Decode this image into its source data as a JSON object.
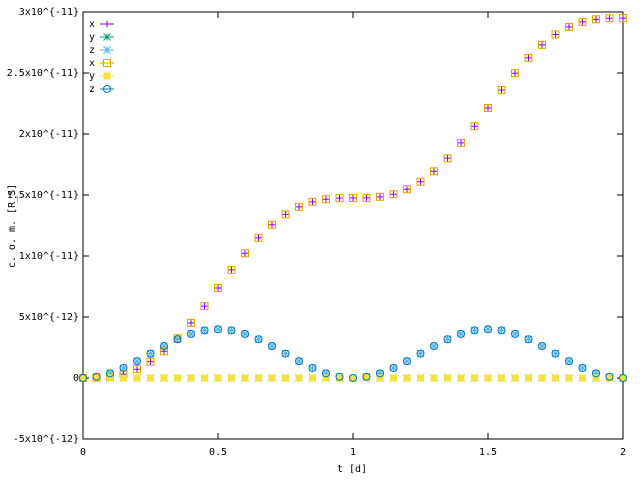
{
  "chart_data": {
    "type": "scatter",
    "xlabel": "t [d]",
    "ylabel": "c. o. m. [R_S]",
    "x": [
      0,
      0.05,
      0.1,
      0.15,
      0.2,
      0.25,
      0.3,
      0.35,
      0.4,
      0.45,
      0.5,
      0.55,
      0.6,
      0.65,
      0.7,
      0.75,
      0.8,
      0.85,
      0.9,
      0.95,
      1,
      1.05,
      1.1,
      1.15,
      1.2,
      1.25,
      1.3,
      1.35,
      1.4,
      1.45,
      1.5,
      1.55,
      1.6,
      1.65,
      1.7,
      1.75,
      1.8,
      1.85,
      1.9,
      1.95,
      2
    ],
    "xlim": [
      0,
      2
    ],
    "xticks": [
      0,
      0.5,
      1,
      1.5,
      2
    ],
    "ylim": [
      -5e-12,
      3e-11
    ],
    "yticks": [
      {
        "value": -5e-12,
        "label": "-5x10^{-12}"
      },
      0,
      {
        "value": 5e-12,
        "label": "5x10^{-12}"
      },
      {
        "value": 1e-11,
        "label": "1x10^{-11}"
      },
      {
        "value": 1.5e-11,
        "label": "1.5x10^{-11}"
      },
      {
        "value": 2e-11,
        "label": "2x10^{-11}"
      },
      {
        "value": 2.5e-11,
        "label": "2.5x10^{-11}"
      },
      {
        "value": 3e-11,
        "label": "3x10^{-11}"
      }
    ],
    "legend": "top-left",
    "series": [
      {
        "name": "x",
        "color": "#9400d3",
        "marker": "plus",
        "values": [
          0,
          1.2e-14,
          9.6e-14,
          3.13e-13,
          7.17e-13,
          1.339e-12,
          2.19e-12,
          3.26e-12,
          4.52e-12,
          5.89e-12,
          7.38e-12,
          8.86e-12,
          1.023e-11,
          1.149e-11,
          1.256e-11,
          1.341e-11,
          1.403e-11,
          1.444e-11,
          1.465e-11,
          1.474e-11,
          1.475e-11,
          1.476e-11,
          1.485e-11,
          1.506e-11,
          1.547e-11,
          1.609e-11,
          1.694e-11,
          1.801e-11,
          1.927e-11,
          2.064e-11,
          2.213e-11,
          2.361e-11,
          2.498e-11,
          2.624e-11,
          2.731e-11,
          2.816e-11,
          2.878e-11,
          2.919e-11,
          2.94e-11,
          2.949e-11,
          2.95e-11
        ]
      },
      {
        "name": "y",
        "color": "#009e73",
        "marker": "star",
        "values": [
          0,
          0,
          0,
          0,
          0,
          0,
          0,
          0,
          0,
          0,
          0,
          0,
          0,
          0,
          0,
          0,
          0,
          0,
          0,
          0,
          0,
          0,
          0,
          0,
          0,
          0,
          0,
          0,
          0,
          0,
          0,
          0,
          0,
          0,
          0,
          0,
          0,
          0,
          0,
          0,
          0
        ]
      },
      {
        "name": "z",
        "color": "#56b4e9",
        "marker": "star",
        "values": [
          0,
          9.8e-14,
          3.82e-13,
          8.24e-13,
          1.382e-12,
          2e-12,
          2.618e-12,
          3.176e-12,
          3.618e-12,
          3.902e-12,
          4e-12,
          3.902e-12,
          3.618e-12,
          3.176e-12,
          2.618e-12,
          2e-12,
          1.382e-12,
          8.24e-13,
          3.82e-13,
          9.8e-14,
          0,
          9.8e-14,
          3.82e-13,
          8.24e-13,
          1.382e-12,
          2e-12,
          2.618e-12,
          3.176e-12,
          3.618e-12,
          3.902e-12,
          4e-12,
          3.902e-12,
          3.618e-12,
          3.176e-12,
          2.618e-12,
          2e-12,
          1.382e-12,
          8.24e-13,
          3.82e-13,
          9.8e-14,
          0
        ]
      },
      {
        "name": "x",
        "color": "#e69f00",
        "marker": "square-open",
        "values": [
          0,
          1.2e-14,
          9.6e-14,
          3.13e-13,
          7.17e-13,
          1.339e-12,
          2.19e-12,
          3.26e-12,
          4.52e-12,
          5.89e-12,
          7.38e-12,
          8.86e-12,
          1.023e-11,
          1.149e-11,
          1.256e-11,
          1.341e-11,
          1.403e-11,
          1.444e-11,
          1.465e-11,
          1.474e-11,
          1.475e-11,
          1.476e-11,
          1.485e-11,
          1.506e-11,
          1.547e-11,
          1.609e-11,
          1.694e-11,
          1.801e-11,
          1.927e-11,
          2.064e-11,
          2.213e-11,
          2.361e-11,
          2.498e-11,
          2.624e-11,
          2.731e-11,
          2.816e-11,
          2.878e-11,
          2.919e-11,
          2.94e-11,
          2.949e-11,
          2.95e-11
        ]
      },
      {
        "name": "y",
        "color": "#f0e442",
        "marker": "square-filled",
        "values": [
          0,
          0,
          0,
          0,
          0,
          0,
          0,
          0,
          0,
          0,
          0,
          0,
          0,
          0,
          0,
          0,
          0,
          0,
          0,
          0,
          0,
          0,
          0,
          0,
          0,
          0,
          0,
          0,
          0,
          0,
          0,
          0,
          0,
          0,
          0,
          0,
          0,
          0,
          0,
          0,
          0
        ]
      },
      {
        "name": "z",
        "color": "#0072b2",
        "marker": "circle-open",
        "values": [
          0,
          9.8e-14,
          3.82e-13,
          8.24e-13,
          1.382e-12,
          2e-12,
          2.618e-12,
          3.176e-12,
          3.618e-12,
          3.902e-12,
          4e-12,
          3.902e-12,
          3.618e-12,
          3.176e-12,
          2.618e-12,
          2e-12,
          1.382e-12,
          8.24e-13,
          3.82e-13,
          9.8e-14,
          0,
          9.8e-14,
          3.82e-13,
          8.24e-13,
          1.382e-12,
          2e-12,
          2.618e-12,
          3.176e-12,
          3.618e-12,
          3.902e-12,
          4e-12,
          3.902e-12,
          3.618e-12,
          3.176e-12,
          2.618e-12,
          2e-12,
          1.382e-12,
          8.24e-13,
          3.82e-13,
          9.8e-14,
          0
        ]
      }
    ]
  }
}
